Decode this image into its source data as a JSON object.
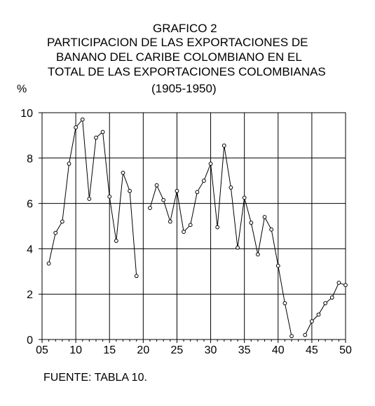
{
  "chart_data": {
    "type": "line",
    "title": "GRAFICO 2",
    "subtitle": [
      "PARTICIPACION DE LAS EXPORTACIONES DE",
      "BANANO DEL CARIBE COLOMBIANO EN EL",
      "TOTAL DE LAS EXPORTACIONES COLOMBIANAS",
      "(1905-1950)"
    ],
    "ylabel": "%",
    "xlabel": "",
    "source": "FUENTE: TABLA 10.",
    "xlim": [
      5,
      50
    ],
    "ylim": [
      0,
      10
    ],
    "xticks": [
      "05",
      "10",
      "15",
      "20",
      "25",
      "30",
      "35",
      "40",
      "45",
      "50"
    ],
    "yticks": [
      "0",
      "2",
      "4",
      "6",
      "8",
      "10"
    ],
    "grid": true,
    "series": [
      {
        "segments": [
          [
            [
              6,
              3.35
            ],
            [
              7,
              4.7
            ],
            [
              8,
              5.2
            ],
            [
              9,
              7.75
            ],
            [
              10,
              9.35
            ],
            [
              11,
              9.7
            ],
            [
              12,
              6.2
            ],
            [
              13,
              8.9
            ],
            [
              14,
              9.15
            ],
            [
              15,
              6.3
            ],
            [
              16,
              4.35
            ],
            [
              17,
              7.35
            ],
            [
              18,
              6.55
            ],
            [
              19,
              2.8
            ]
          ],
          [
            [
              21,
              5.8
            ],
            [
              22,
              6.8
            ],
            [
              23,
              6.15
            ],
            [
              24,
              5.2
            ],
            [
              25,
              6.55
            ],
            [
              26,
              4.75
            ],
            [
              27,
              5.05
            ],
            [
              28,
              6.5
            ],
            [
              29,
              7.0
            ],
            [
              30,
              7.75
            ],
            [
              31,
              4.95
            ],
            [
              32,
              8.55
            ],
            [
              33,
              6.7
            ],
            [
              34,
              4.05
            ],
            [
              35,
              6.25
            ],
            [
              36,
              5.15
            ],
            [
              37,
              3.75
            ],
            [
              38,
              5.4
            ],
            [
              39,
              4.85
            ],
            [
              40,
              3.25
            ],
            [
              41,
              1.6
            ],
            [
              42,
              0.15
            ]
          ],
          [
            [
              44,
              0.2
            ],
            [
              45,
              0.8
            ],
            [
              46,
              1.1
            ],
            [
              47,
              1.6
            ],
            [
              48,
              1.85
            ],
            [
              49,
              2.5
            ],
            [
              50,
              2.4
            ]
          ]
        ]
      }
    ]
  }
}
